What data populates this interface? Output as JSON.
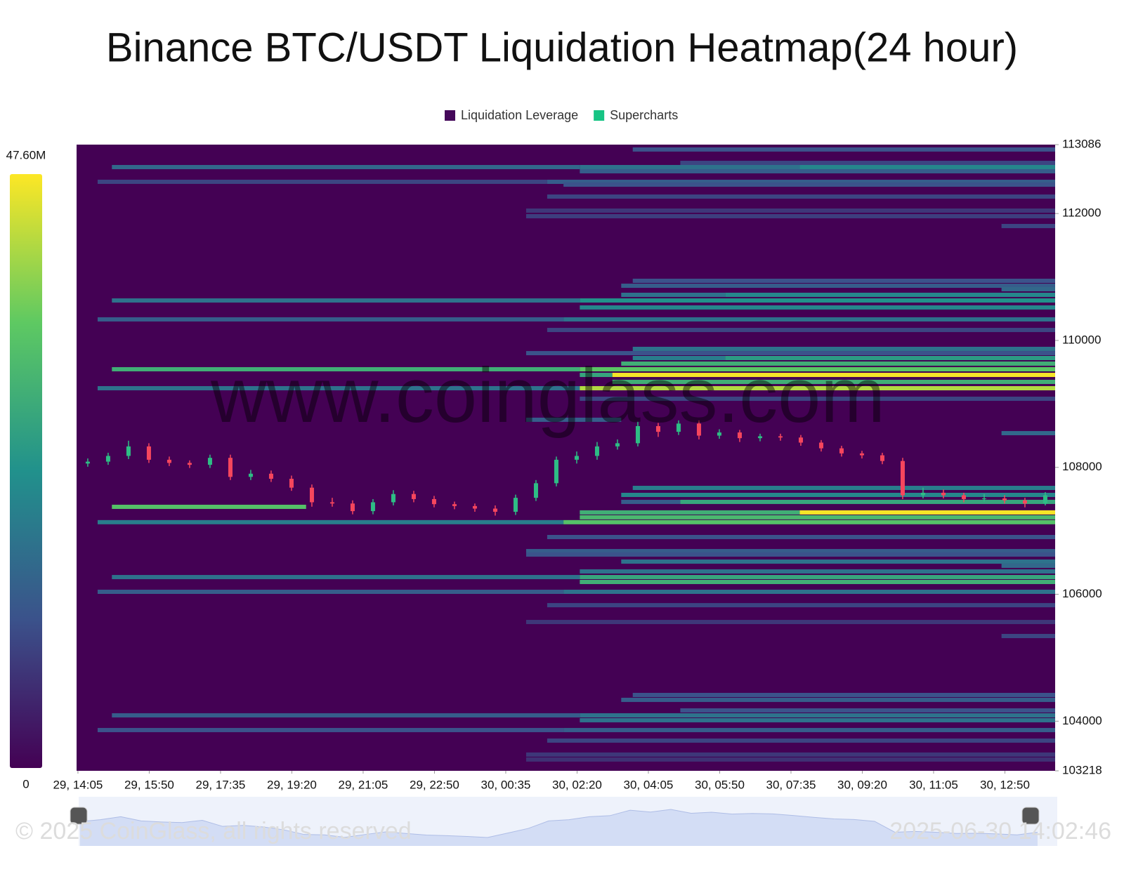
{
  "chart_data": {
    "type": "heatmap",
    "title": "Binance BTC/USDT Liquidation Heatmap(24 hour)",
    "series": [
      {
        "name": "Liquidation Leverage",
        "color": "#45085a"
      },
      {
        "name": "Supercharts",
        "color": "#17c484"
      }
    ],
    "colormap": "viridis",
    "clim": [
      0,
      47.6
    ],
    "cticks": [
      0,
      {
        "value": 47.6,
        "label": "47.60M"
      }
    ],
    "ylim": [
      103218,
      113086
    ],
    "yticks": [
      103218,
      104000,
      106000,
      108000,
      110000,
      112000,
      113086
    ],
    "xlim": [
      -2,
      1439
    ],
    "xticks": [
      {
        "value": 0,
        "label": "29, 14:05"
      },
      {
        "value": 105,
        "label": "29, 15:50"
      },
      {
        "value": 210,
        "label": "29, 17:35"
      },
      {
        "value": 315,
        "label": "29, 19:20"
      },
      {
        "value": 420,
        "label": "29, 21:05"
      },
      {
        "value": 525,
        "label": "29, 22:50"
      },
      {
        "value": 630,
        "label": "30, 00:35"
      },
      {
        "value": 735,
        "label": "30, 02:20"
      },
      {
        "value": 840,
        "label": "30, 04:05"
      },
      {
        "value": 945,
        "label": "30, 05:50"
      },
      {
        "value": 1050,
        "label": "30, 07:35"
      },
      {
        "value": 1155,
        "label": "30, 09:20"
      },
      {
        "value": 1260,
        "label": "30, 11:05"
      },
      {
        "value": 1365,
        "label": "30, 12:50"
      }
    ],
    "segments": [
      {
        "price": 113009,
        "x": [
          817,
          1439
        ],
        "value": 12
      },
      {
        "price": 112798,
        "x": [
          887,
          1439
        ],
        "value": 10
      },
      {
        "price": 112732,
        "x": [
          50,
          739
        ],
        "value": 16
      },
      {
        "price": 112732,
        "x": [
          739,
          1063
        ],
        "value": 18
      },
      {
        "price": 112732,
        "x": [
          1063,
          1439
        ],
        "value": 22
      },
      {
        "price": 112666,
        "x": [
          739,
          1439
        ],
        "value": 14
      },
      {
        "price": 112500,
        "x": [
          29,
          691
        ],
        "value": 10
      },
      {
        "price": 112500,
        "x": [
          691,
          1439
        ],
        "value": 14
      },
      {
        "price": 112455,
        "x": [
          715,
          1439
        ],
        "value": 12
      },
      {
        "price": 112267,
        "x": [
          691,
          1439
        ],
        "value": 10
      },
      {
        "price": 112046,
        "x": [
          660,
          1439
        ],
        "value": 8
      },
      {
        "price": 111958,
        "x": [
          660,
          1439
        ],
        "value": 9
      },
      {
        "price": 111803,
        "x": [
          1360,
          1439
        ],
        "value": 10
      },
      {
        "price": 110940,
        "x": [
          817,
          1439
        ],
        "value": 12
      },
      {
        "price": 110862,
        "x": [
          800,
          1439
        ],
        "value": 14
      },
      {
        "price": 110807,
        "x": [
          1360,
          1439
        ],
        "value": 16
      },
      {
        "price": 110719,
        "x": [
          800,
          953
        ],
        "value": 18
      },
      {
        "price": 110719,
        "x": [
          953,
          1439
        ],
        "value": 22
      },
      {
        "price": 110630,
        "x": [
          50,
          739
        ],
        "value": 18
      },
      {
        "price": 110630,
        "x": [
          739,
          1439
        ],
        "value": 24
      },
      {
        "price": 110520,
        "x": [
          739,
          1439
        ],
        "value": 22
      },
      {
        "price": 110332,
        "x": [
          29,
          715
        ],
        "value": 14
      },
      {
        "price": 110332,
        "x": [
          715,
          1439
        ],
        "value": 18
      },
      {
        "price": 110165,
        "x": [
          691,
          1439
        ],
        "value": 10
      },
      {
        "price": 109867,
        "x": [
          817,
          1439
        ],
        "value": 18
      },
      {
        "price": 109800,
        "x": [
          660,
          1439
        ],
        "value": 12
      },
      {
        "price": 109723,
        "x": [
          817,
          953
        ],
        "value": 20
      },
      {
        "price": 109723,
        "x": [
          953,
          1439
        ],
        "value": 26
      },
      {
        "price": 109635,
        "x": [
          800,
          1439
        ],
        "value": 30
      },
      {
        "price": 109546,
        "x": [
          50,
          739
        ],
        "value": 30
      },
      {
        "price": 109546,
        "x": [
          739,
          1439
        ],
        "value": 35
      },
      {
        "price": 109457,
        "x": [
          739,
          787
        ],
        "value": 28
      },
      {
        "price": 109457,
        "x": [
          787,
          1439
        ],
        "value": 47
      },
      {
        "price": 109347,
        "x": [
          787,
          1439
        ],
        "value": 30
      },
      {
        "price": 109247,
        "x": [
          29,
          739
        ],
        "value": 18
      },
      {
        "price": 109247,
        "x": [
          739,
          1439
        ],
        "value": 42
      },
      {
        "price": 109081,
        "x": [
          739,
          1439
        ],
        "value": 10
      },
      {
        "price": 108750,
        "x": [
          660,
          800
        ],
        "value": 14
      },
      {
        "price": 108539,
        "x": [
          1360,
          1439
        ],
        "value": 16
      },
      {
        "price": 107676,
        "x": [
          817,
          1439
        ],
        "value": 20
      },
      {
        "price": 107566,
        "x": [
          800,
          1439
        ],
        "value": 22
      },
      {
        "price": 107456,
        "x": [
          800,
          887
        ],
        "value": 14
      },
      {
        "price": 107456,
        "x": [
          887,
          1439
        ],
        "value": 28
      },
      {
        "price": 107378,
        "x": [
          50,
          336
        ],
        "value": 34
      },
      {
        "price": 107290,
        "x": [
          739,
          1063
        ],
        "value": 30
      },
      {
        "price": 107290,
        "x": [
          1063,
          1439
        ],
        "value": 47
      },
      {
        "price": 107213,
        "x": [
          739,
          1439
        ],
        "value": 32
      },
      {
        "price": 107136,
        "x": [
          29,
          715
        ],
        "value": 20
      },
      {
        "price": 107136,
        "x": [
          715,
          1439
        ],
        "value": 34
      },
      {
        "price": 106902,
        "x": [
          691,
          1439
        ],
        "value": 12
      },
      {
        "price": 106680,
        "x": [
          660,
          1439
        ],
        "value": 14
      },
      {
        "price": 106626,
        "x": [
          660,
          1439
        ],
        "value": 12
      },
      {
        "price": 106515,
        "x": [
          800,
          1439
        ],
        "value": 18
      },
      {
        "price": 106449,
        "x": [
          1360,
          1439
        ],
        "value": 16
      },
      {
        "price": 106360,
        "x": [
          739,
          1439
        ],
        "value": 18
      },
      {
        "price": 106271,
        "x": [
          50,
          739
        ],
        "value": 18
      },
      {
        "price": 106271,
        "x": [
          739,
          1439
        ],
        "value": 28
      },
      {
        "price": 106194,
        "x": [
          739,
          1439
        ],
        "value": 30
      },
      {
        "price": 106039,
        "x": [
          29,
          715
        ],
        "value": 14
      },
      {
        "price": 106039,
        "x": [
          715,
          1439
        ],
        "value": 18
      },
      {
        "price": 105828,
        "x": [
          691,
          1439
        ],
        "value": 10
      },
      {
        "price": 105563,
        "x": [
          660,
          1439
        ],
        "value": 8
      },
      {
        "price": 105342,
        "x": [
          1360,
          1439
        ],
        "value": 10
      },
      {
        "price": 104413,
        "x": [
          817,
          1439
        ],
        "value": 12
      },
      {
        "price": 104336,
        "x": [
          800,
          1439
        ],
        "value": 14
      },
      {
        "price": 104170,
        "x": [
          887,
          1439
        ],
        "value": 12
      },
      {
        "price": 104092,
        "x": [
          50,
          739
        ],
        "value": 14
      },
      {
        "price": 104092,
        "x": [
          739,
          1439
        ],
        "value": 18
      },
      {
        "price": 104015,
        "x": [
          739,
          1439
        ],
        "value": 18
      },
      {
        "price": 103860,
        "x": [
          29,
          715
        ],
        "value": 12
      },
      {
        "price": 103860,
        "x": [
          715,
          1439
        ],
        "value": 14
      },
      {
        "price": 103694,
        "x": [
          691,
          1439
        ],
        "value": 10
      },
      {
        "price": 103474,
        "x": [
          660,
          1439
        ],
        "value": 8
      },
      {
        "price": 103396,
        "x": [
          660,
          1439
        ],
        "value": 7
      }
    ],
    "candle_colors": {
      "up": "#2ebd85",
      "down": "#f6465d"
    },
    "candles": {
      "t": [
        0,
        30,
        60,
        90,
        120,
        150,
        180,
        210,
        240,
        270,
        300,
        330,
        360,
        390,
        420,
        450,
        480,
        510,
        540,
        570,
        600,
        630,
        660,
        690,
        720,
        750,
        780,
        810,
        840,
        870,
        900,
        930,
        960,
        990,
        1020,
        1050,
        1080,
        1110,
        1140,
        1170,
        1200,
        1230,
        1260,
        1290,
        1320,
        1350,
        1380,
        1410
      ],
      "open": [
        108060,
        108090,
        108180,
        108330,
        108120,
        108070,
        108040,
        108150,
        107850,
        107900,
        107820,
        107680,
        107450,
        107430,
        107310,
        107450,
        107580,
        107500,
        107420,
        107390,
        107350,
        107300,
        107520,
        107750,
        108120,
        108180,
        108330,
        108380,
        108650,
        108560,
        108690,
        108500,
        108550,
        108460,
        108490,
        108470,
        108390,
        108300,
        108220,
        108190,
        108100,
        107560,
        107600,
        107560,
        107500,
        107510,
        107480,
        107430
      ],
      "high": [
        108140,
        108230,
        108420,
        108380,
        108170,
        108110,
        108200,
        108200,
        107960,
        107950,
        107870,
        107730,
        107520,
        107480,
        107500,
        107640,
        107630,
        107550,
        107460,
        107430,
        107400,
        107570,
        107800,
        108170,
        108250,
        108400,
        108440,
        108720,
        108700,
        108740,
        108740,
        108600,
        108590,
        108530,
        108530,
        108510,
        108430,
        108340,
        108260,
        108230,
        108150,
        107680,
        107650,
        107600,
        107580,
        107560,
        107520,
        107610
      ],
      "low": [
        108010,
        108040,
        108130,
        108070,
        108020,
        107990,
        107990,
        107800,
        107800,
        107770,
        107630,
        107380,
        107380,
        107260,
        107260,
        107400,
        107450,
        107370,
        107340,
        107300,
        107240,
        107250,
        107470,
        107700,
        108060,
        108120,
        108280,
        108330,
        108480,
        108510,
        108440,
        108450,
        108400,
        108410,
        108420,
        108340,
        108250,
        108170,
        108140,
        108050,
        107500,
        107510,
        107510,
        107450,
        107460,
        107430,
        107370,
        107400
      ],
      "close": [
        108090,
        108180,
        108330,
        108120,
        108070,
        108040,
        108150,
        107850,
        107900,
        107820,
        107680,
        107450,
        107430,
        107310,
        107450,
        107580,
        107500,
        107420,
        107390,
        107350,
        107300,
        107520,
        107750,
        108120,
        108180,
        108330,
        108380,
        108650,
        108560,
        108690,
        108500,
        108550,
        108460,
        108490,
        108470,
        108390,
        108300,
        108220,
        108190,
        108100,
        107560,
        107600,
        107560,
        107500,
        107510,
        107480,
        107430,
        107560
      ]
    },
    "watermark": "www.coinglass.com",
    "footer": {
      "copyright": "© 2025 CoinGlass, all rights reserved",
      "timestamp": "2025-06-30 14:02:46"
    }
  }
}
